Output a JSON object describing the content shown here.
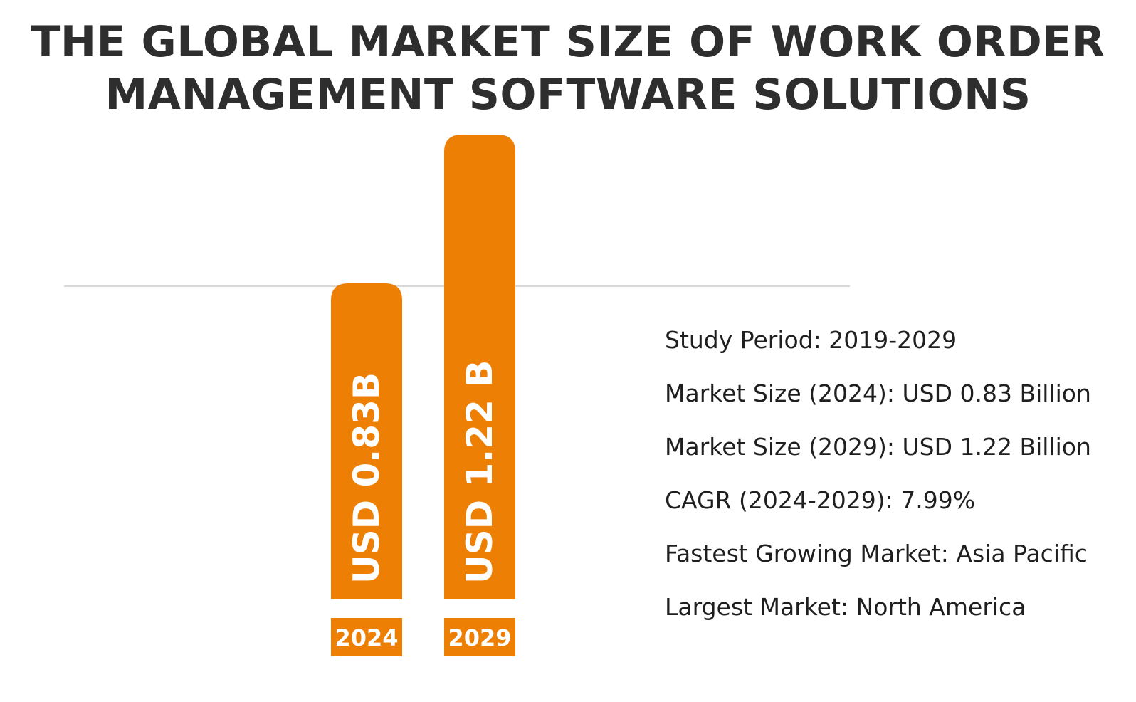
{
  "title": {
    "line1": "THE GLOBAL MARKET SIZE OF WORK ORDER",
    "line2": "MANAGEMENT SOFTWARE SOLUTIONS"
  },
  "colors": {
    "bar": "#EE7F05",
    "title": "#2E2E2E",
    "text": "#1F1F1F",
    "gridline": "#D9D9D9",
    "bar_label": "#FFFFFF"
  },
  "chart_data": {
    "type": "bar",
    "title": "THE GLOBAL MARKET SIZE OF WORK ORDER MANAGEMENT SOFTWARE SOLUTIONS",
    "categories": [
      "2024",
      "2029"
    ],
    "values": [
      0.83,
      1.22
    ],
    "value_labels": [
      "USD 0.83B",
      "USD 1.22 B"
    ],
    "unit": "USD Billion",
    "xlabel": "",
    "ylabel": "",
    "grid": false,
    "legend": "none"
  },
  "stats": [
    "Study Period: 2019-2029",
    "Market Size (2024): USD 0.83 Billion",
    "Market Size (2029): USD 1.22 Billion",
    "CAGR (2024-2029): 7.99%",
    "Fastest Growing Market: Asia Pacific",
    "Largest Market: North America"
  ]
}
